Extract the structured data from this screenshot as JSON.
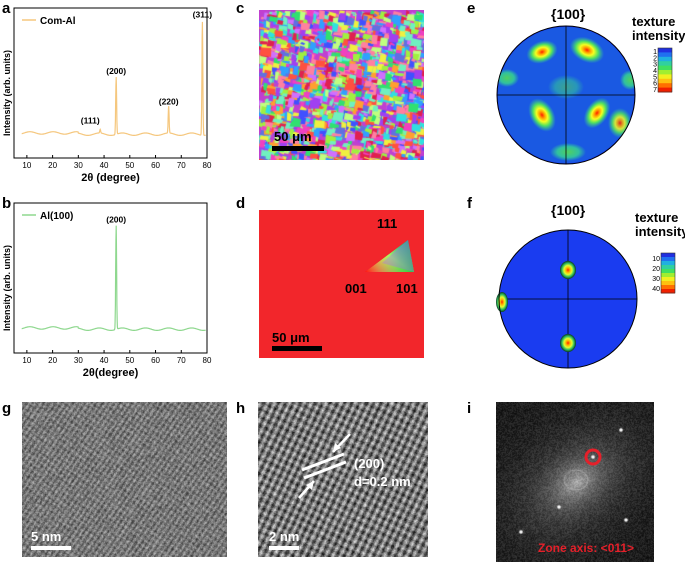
{
  "panels": {
    "a": {
      "letter": "a",
      "chart_data": {
        "type": "line",
        "xlabel": "2θ (degree)",
        "ylabel": "Intensity (arb. units)",
        "xlim": [
          5,
          80
        ],
        "xticks": [
          10,
          20,
          30,
          40,
          50,
          60,
          70,
          80
        ],
        "legend": "Com-Al",
        "legend_position": "top-left",
        "color": "#F5C77E",
        "peaks": [
          {
            "label": "(111)",
            "x": 38.5,
            "rel": 0.03
          },
          {
            "label": "(200)",
            "x": 44.7,
            "rel": 0.47
          },
          {
            "label": "(220)",
            "x": 65.1,
            "rel": 0.22
          },
          {
            "label": "(311)",
            "x": 78.2,
            "rel": 0.93
          }
        ]
      }
    },
    "b": {
      "letter": "b",
      "chart_data": {
        "type": "line",
        "xlabel": "2θ(degree)",
        "ylabel": "Intensity (arb. units)",
        "xlim": [
          5,
          80
        ],
        "xticks": [
          10,
          20,
          30,
          40,
          50,
          60,
          70,
          80
        ],
        "legend": "Al(100)",
        "legend_position": "top-left",
        "color": "#8FD88F",
        "peaks": [
          {
            "label": "(200)",
            "x": 44.7,
            "rel": 0.85
          }
        ]
      }
    },
    "c": {
      "letter": "c",
      "scalebar": "50 μm"
    },
    "d": {
      "letter": "d",
      "scalebar": "50 μm",
      "ipf": {
        "top": "111",
        "left": "001",
        "right": "101"
      },
      "map_color": "#F2262B"
    },
    "e": {
      "letter": "e",
      "title": "{100}",
      "legend_title_1": "texture",
      "legend_title_2": "intensity",
      "legend_ticks": [
        "1",
        "2",
        "3",
        "4",
        "5",
        "6",
        "7"
      ]
    },
    "f": {
      "letter": "f",
      "title": "{100}",
      "legend_title_1": "texture",
      "legend_title_2": "intensity",
      "legend_ticks": [
        "10",
        "20",
        "30",
        "40"
      ]
    },
    "g": {
      "letter": "g",
      "scalebar": "5 nm"
    },
    "h": {
      "letter": "h",
      "scalebar": "2 nm",
      "plane": "(200)",
      "spacing": "d=0.2 nm"
    },
    "i": {
      "letter": "i",
      "zone_axis": "Zone axis: <011>",
      "accent": "#E5202A"
    }
  }
}
